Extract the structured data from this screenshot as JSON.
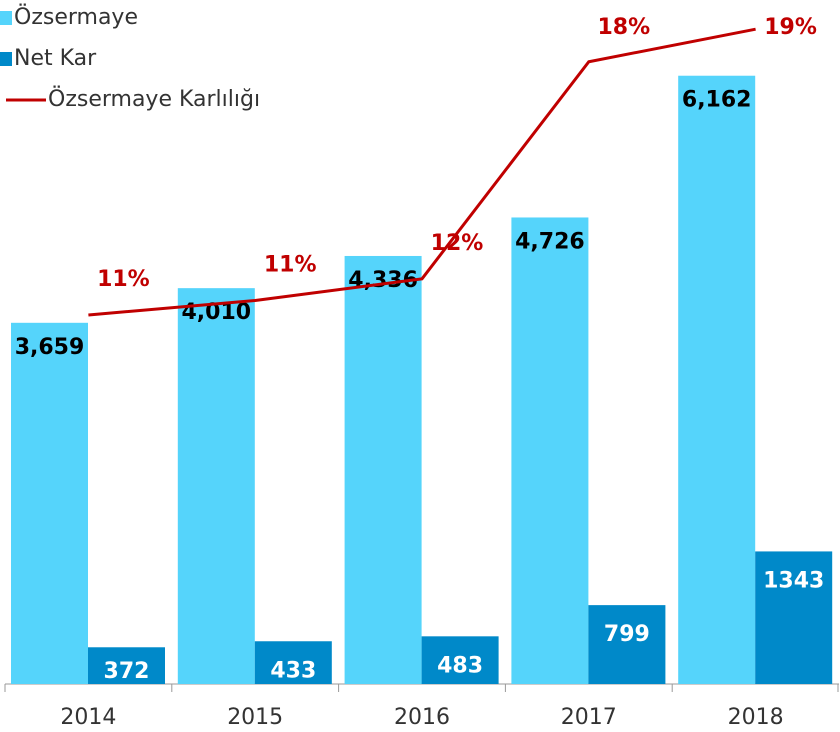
{
  "chart_data": {
    "type": "bar-line",
    "categories": [
      "2014",
      "2015",
      "2016",
      "2017",
      "2018"
    ],
    "ylim": [
      0,
      7000
    ],
    "y2lim": [
      0.8,
      19.9
    ],
    "series": [
      {
        "name": "Özsermaye",
        "color": "#55d4fb",
        "values": [
          3659,
          4010,
          4336,
          4726,
          6162
        ],
        "value_labels": [
          "3,659",
          "4,010",
          "4,336",
          "4,726",
          "6,162"
        ]
      },
      {
        "name": "Net Kar",
        "color": "#0089c9",
        "values": [
          372,
          433,
          483,
          799,
          1343
        ]
      },
      {
        "name": "Özsermaye Karlılığı",
        "color": "#c00000",
        "axis": "y2",
        "values": [
          11,
          11.4,
          12,
          18,
          18.9
        ],
        "value_labels": [
          "11%",
          "11%",
          "12%",
          "18%",
          "19%"
        ]
      }
    ]
  }
}
